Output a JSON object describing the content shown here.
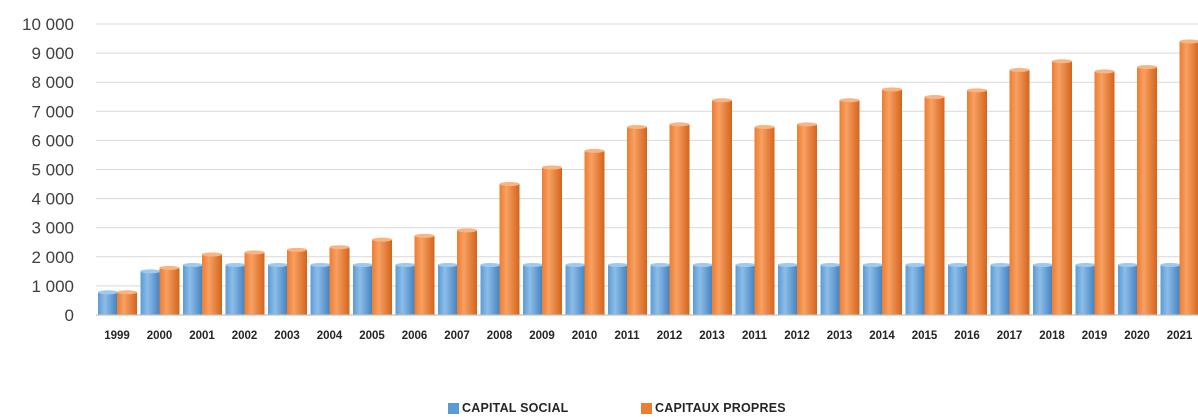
{
  "chart_data": {
    "type": "bar",
    "title": "",
    "xlabel": "",
    "ylabel": "",
    "ylim": [
      0,
      10000
    ],
    "yticks": [
      "0",
      "1 000",
      "2 000",
      "3 000",
      "4 000",
      "5 000",
      "6 000",
      "7 000",
      "8 000",
      "9 000",
      "10 000"
    ],
    "grid": true,
    "legend_position": "bottom-center",
    "categories": [
      "1999",
      "2000",
      "2001",
      "2002",
      "2003",
      "2004",
      "2005",
      "2006",
      "2007",
      "2008",
      "2009",
      "2010",
      "2011",
      "2012",
      "2013",
      "2011",
      "2012",
      "2013",
      "2014",
      "2015",
      "2016",
      "2017",
      "2018",
      "2019",
      "2020",
      "2021"
    ],
    "series": [
      {
        "name": "CAPITAL SOCIAL",
        "color": "#5b9bd5",
        "values": [
          780,
          1500,
          1720,
          1720,
          1720,
          1720,
          1720,
          1720,
          1720,
          1720,
          1720,
          1720,
          1720,
          1720,
          1720,
          1720,
          1720,
          1720,
          1720,
          1720,
          1720,
          1720,
          1720,
          1720,
          1720,
          1720
        ]
      },
      {
        "name": "CAPITAUX PROPRES",
        "color": "#ed7d31",
        "values": [
          780,
          1620,
          2080,
          2150,
          2240,
          2330,
          2590,
          2720,
          2910,
          4500,
          5070,
          5640,
          6460,
          6550,
          7380,
          6460,
          6550,
          7380,
          7750,
          7490,
          7720,
          8420,
          8720,
          8370,
          8520,
          9400
        ]
      }
    ]
  }
}
